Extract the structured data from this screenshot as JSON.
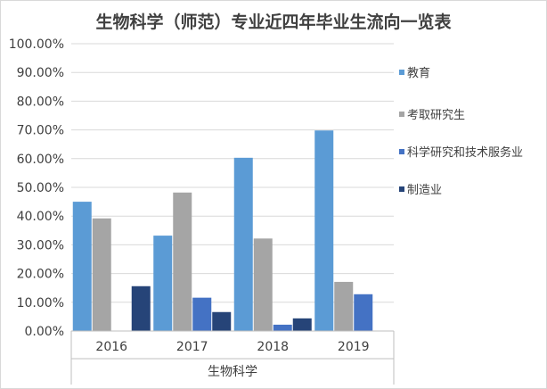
{
  "chart_data": {
    "type": "bar",
    "title": "生物科学（师范）专业近四年毕业生流向一览表",
    "categories": [
      "2016",
      "2017",
      "2018",
      "2019"
    ],
    "group_label": "生物科学",
    "ylim": [
      0,
      100
    ],
    "yticks": [
      "0.00%",
      "10.00%",
      "20.00%",
      "30.00%",
      "40.00%",
      "50.00%",
      "60.00%",
      "70.00%",
      "80.00%",
      "90.00%",
      "100.00%"
    ],
    "series": [
      {
        "name": "教育",
        "color": "#5b9bd5",
        "values": [
          45.0,
          33.2,
          60.3,
          69.8
        ]
      },
      {
        "name": "考取研究生",
        "color": "#a5a5a5",
        "values": [
          39.2,
          48.2,
          32.2,
          17.1
        ]
      },
      {
        "name": "科学研究和技术服务业",
        "color": "#4472c4",
        "values": [
          0,
          11.6,
          2.2,
          12.8
        ]
      },
      {
        "name": "制造业",
        "color": "#264478",
        "values": [
          15.6,
          6.6,
          4.4,
          0
        ]
      }
    ],
    "legend_position": "right",
    "grid": true
  }
}
